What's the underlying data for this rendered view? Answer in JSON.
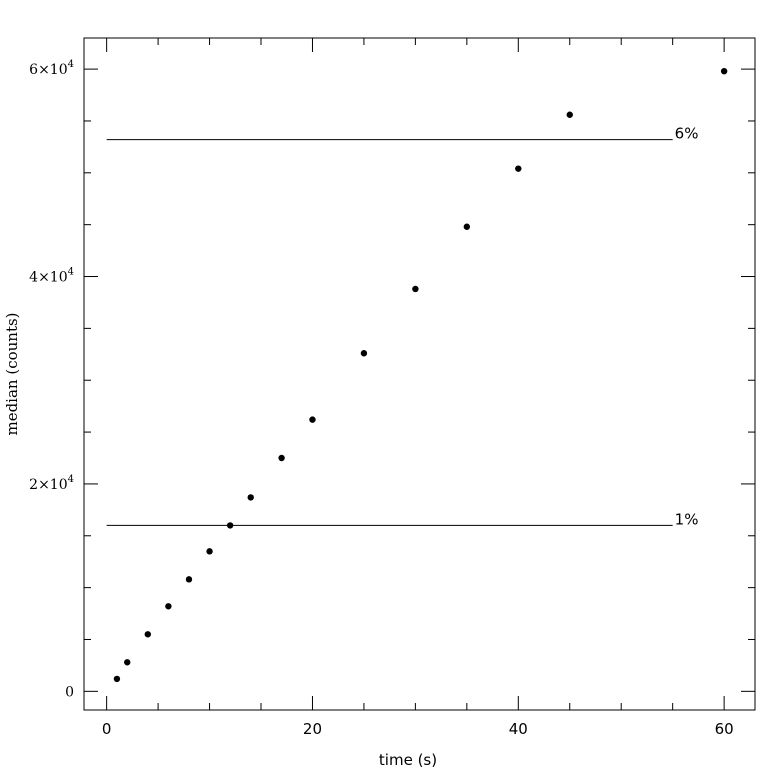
{
  "chart_data": {
    "type": "scatter",
    "title": "",
    "xlabel": "time (s)",
    "ylabel": "median (counts)",
    "xlim": [
      -2.2,
      63
    ],
    "ylim": [
      -1800,
      63000
    ],
    "x_ticks": [
      {
        "value": 0,
        "label": "0"
      },
      {
        "value": 20,
        "label": "20"
      },
      {
        "value": 40,
        "label": "40"
      },
      {
        "value": 60,
        "label": "60"
      }
    ],
    "x_minor_ticks": [
      5,
      10,
      15,
      25,
      30,
      35,
      45,
      50,
      55
    ],
    "y_ticks": [
      {
        "value": 0,
        "label_base": "0",
        "label_exp": ""
      },
      {
        "value": 20000,
        "label_base": "2×10",
        "label_exp": "4"
      },
      {
        "value": 40000,
        "label_base": "4×10",
        "label_exp": "4"
      },
      {
        "value": 60000,
        "label_base": "6×10",
        "label_exp": "4"
      }
    ],
    "y_minor_ticks": [
      5000,
      10000,
      15000,
      25000,
      30000,
      35000,
      45000,
      50000,
      55000
    ],
    "x": [
      1,
      2,
      4,
      6,
      8,
      10,
      12,
      14,
      17,
      20,
      25,
      30,
      35,
      40,
      45,
      60
    ],
    "y": [
      1200,
      2800,
      5500,
      8200,
      10800,
      13500,
      16000,
      18700,
      22500,
      26200,
      32600,
      38800,
      44800,
      50400,
      55600,
      59800
    ],
    "reference_lines": [
      {
        "label": "6%",
        "y": 53200,
        "x_start": 0,
        "x_end": 55
      },
      {
        "label": "1%",
        "y": 16000,
        "x_start": 0,
        "x_end": 55
      }
    ],
    "grid": false,
    "legend": "none"
  }
}
